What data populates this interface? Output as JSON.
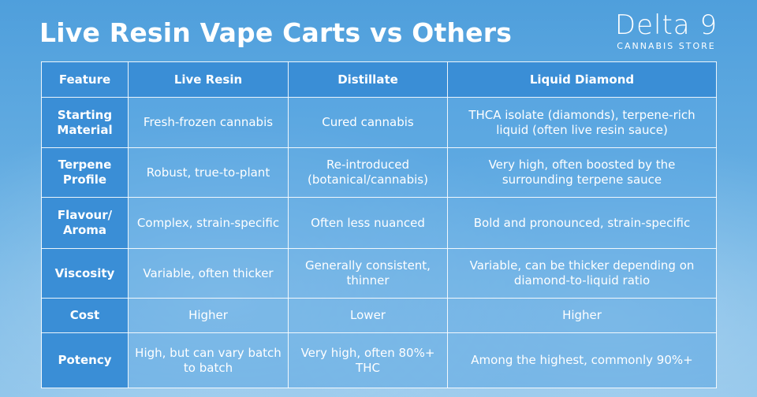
{
  "header": {
    "title": "Live Resin Vape Carts vs Others"
  },
  "logo": {
    "name": "Delta 9",
    "subtitle": "CANNABIS STORE"
  },
  "table": {
    "columns": [
      "Feature",
      "Live Resin",
      "Distillate",
      "Liquid Diamond"
    ],
    "rows": [
      [
        "Starting Material",
        "Fresh-frozen cannabis",
        "Cured cannabis",
        "THCA isolate (diamonds), terpene-rich liquid (often live resin sauce)"
      ],
      [
        "Terpene Profile",
        "Robust, true-to-plant",
        "Re-introduced (botanical/cannabis)",
        "Very high, often boosted by the surrounding terpene sauce"
      ],
      [
        "Flavour/ Aroma",
        "Complex, strain-specific",
        "Often less nuanced",
        "Bold and pronounced, strain-specific"
      ],
      [
        "Viscosity",
        "Variable, often thicker",
        "Generally consistent, thinner",
        "Variable, can be thicker depending on diamond-to-liquid ratio"
      ],
      [
        "Cost",
        "Higher",
        "Lower",
        "Higher"
      ],
      [
        "Potency",
        "High, but can vary batch to batch",
        "Very high, often 80%+ THC",
        "Among the highest, commonly 90%+"
      ]
    ]
  }
}
